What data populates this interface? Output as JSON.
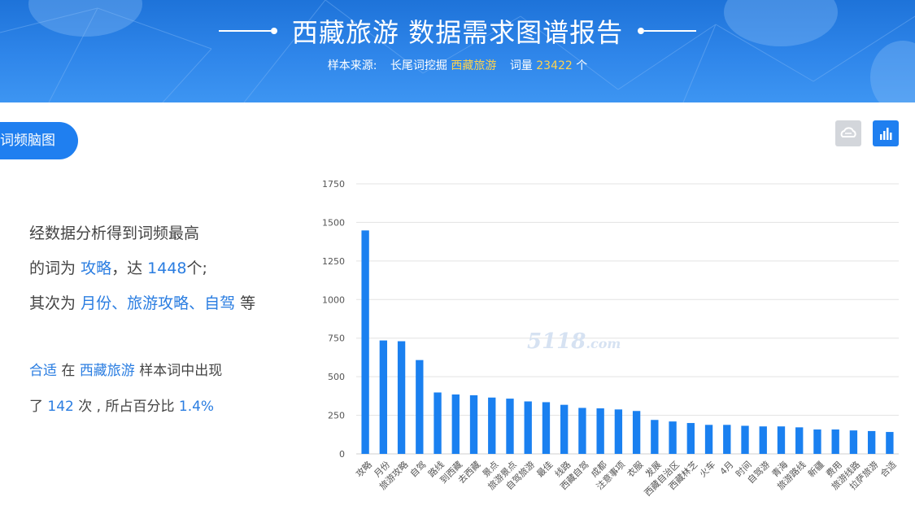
{
  "header": {
    "title": "西藏旅游 数据需求图谱报告",
    "source_label": "样本来源:",
    "source_method": "长尾词挖掘",
    "keyword": "西藏旅游",
    "count_label": "词量",
    "count_value": "23422",
    "count_unit": "个"
  },
  "section": {
    "badge": "词频脑图"
  },
  "toolbar": {
    "cloud_icon": "wordcloud-icon",
    "bars_icon": "bar-chart-icon"
  },
  "summary": {
    "line1": "经数据分析得到词频最高",
    "line2_pre": "的词为",
    "top_word": "攻略",
    "line2_mid": "，达",
    "top_count": "1448",
    "line2_post": "个;",
    "line3_pre": "其次为",
    "next_words": "月份、旅游攻略、自驾",
    "line3_post": "等"
  },
  "detail": {
    "word": "合适",
    "mid1": "在",
    "sample": "西藏旅游",
    "mid2": "样本词中出现",
    "pre_count": "了",
    "count": "142",
    "post_count": "次 , 所占百分比",
    "percent": "1.4%"
  },
  "watermark": {
    "main": "5118",
    "suffix": ".com"
  },
  "chart_data": {
    "type": "bar",
    "ylim": [
      0,
      1750
    ],
    "yticks": [
      0,
      250,
      500,
      750,
      1000,
      1250,
      1500,
      1750
    ],
    "grid": true,
    "bar_color": "#1a80f0",
    "categories": [
      "攻略",
      "月份",
      "旅游攻略",
      "自驾",
      "路线",
      "到西藏",
      "去西藏",
      "景点",
      "旅游景点",
      "自驾旅游",
      "最佳",
      "线路",
      "西藏自驾",
      "成都",
      "注意事项",
      "衣服",
      "发展",
      "西藏自治区",
      "西藏林芝",
      "火车",
      "4月",
      "时间",
      "自驾游",
      "青海",
      "旅游路线",
      "新疆",
      "费用",
      "旅游线路",
      "拉萨旅游",
      "合适"
    ],
    "values": [
      1448,
      735,
      730,
      608,
      398,
      385,
      380,
      365,
      358,
      340,
      335,
      318,
      298,
      295,
      288,
      278,
      220,
      210,
      200,
      188,
      188,
      182,
      178,
      178,
      172,
      158,
      158,
      152,
      148,
      142
    ]
  }
}
